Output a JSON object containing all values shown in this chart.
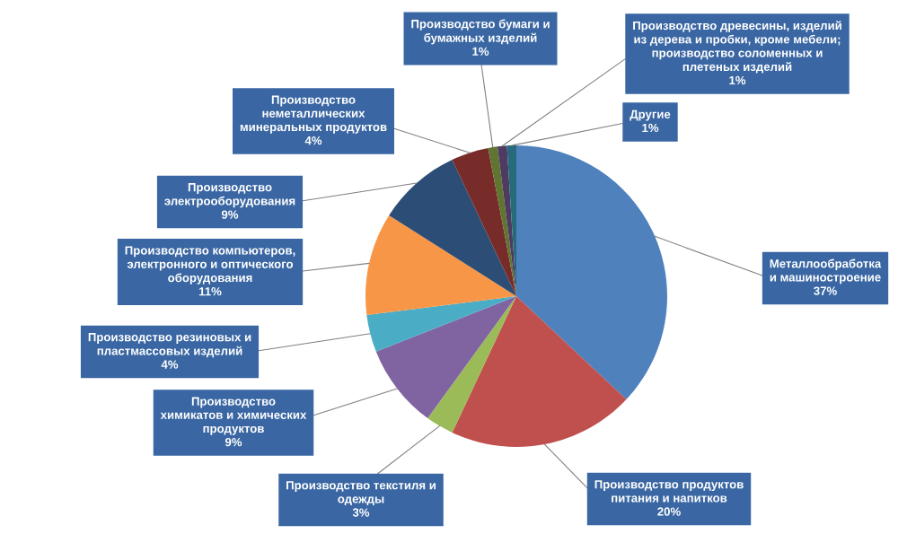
{
  "chart_data": {
    "type": "pie",
    "categories": [
      "Металлообработка\nи машиностроение",
      "Производство продуктов\nпитания и напитков",
      "Производство текстиля и\nодежды",
      "Производство\nхимикатов и химических\nпродуктов",
      "Производство резиновых и\nпластмассовых изделий",
      "Производство компьютеров,\nэлектронного и оптического\nоборудования",
      "Производство\nэлектрооборудования",
      "Производство\nнеметаллических\nминеральных продуктов",
      "Производство бумаги и\nбумажных изделий",
      "Производство древесины, изделий\nиз дерева и пробки, кроме мебели;\nпроизводство соломенных и\nплетеных изделий",
      "Другие"
    ],
    "values": [
      37,
      20,
      3,
      9,
      4,
      11,
      9,
      4,
      1,
      1,
      1
    ],
    "colors": [
      "#4f81bd",
      "#c0504d",
      "#9bbb59",
      "#8064a2",
      "#4bacc6",
      "#f79646",
      "#2c4d75",
      "#772c2a",
      "#5f7530",
      "#4d3b62",
      "#276a7c"
    ],
    "value_labels": [
      "37%",
      "20%",
      "3%",
      "9%",
      "4%",
      "11%",
      "9%",
      "4%",
      "1%",
      "1%",
      "1%"
    ]
  }
}
